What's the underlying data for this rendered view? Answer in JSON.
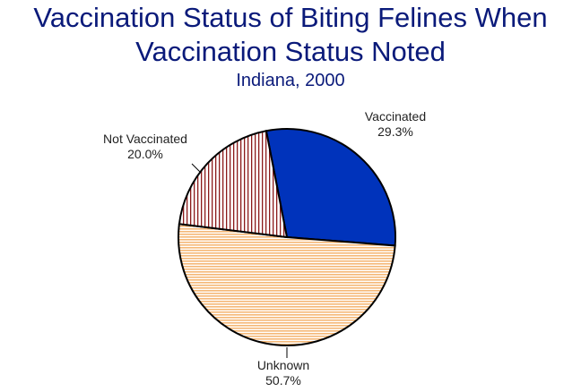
{
  "chart_data": {
    "type": "pie",
    "title_lines": [
      "Vaccination Status of Biting Felines When",
      "Vaccination Status Noted"
    ],
    "subtitle": "Indiana, 2000",
    "slices": [
      {
        "name": "Vaccinated",
        "value": 29.3,
        "label": "29.3%",
        "color": "#0033bb",
        "fill": "solid"
      },
      {
        "name": "Unknown",
        "value": 50.7,
        "label": "50.7%",
        "color": "#f5c99a",
        "fill": "horizontal-stripes"
      },
      {
        "name": "Not Vaccinated",
        "value": 20.0,
        "label": "20.0%",
        "color": "#8b1a1a",
        "fill": "vertical-stripes"
      }
    ]
  }
}
